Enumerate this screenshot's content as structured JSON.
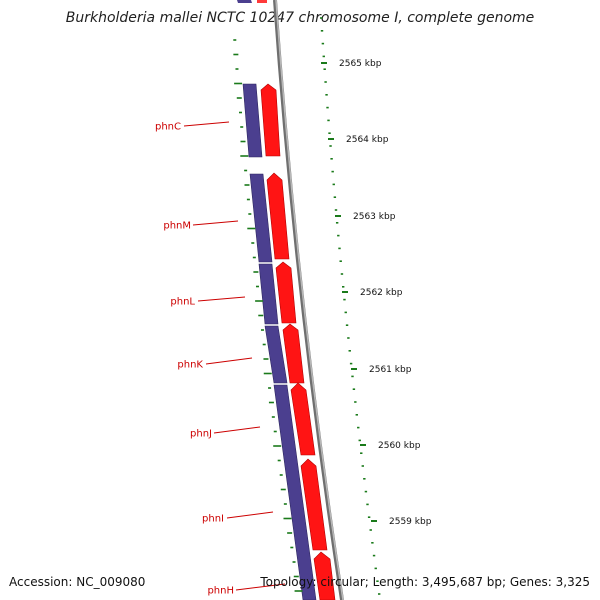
{
  "title": "Burkholderia mallei NCTC 10247 chromosome I, complete genome",
  "footer": {
    "accession": "Accession: NC_009080",
    "summary": "Topology: circular; Length: 3,495,687 bp; Genes: 3,325"
  },
  "ticks": [
    {
      "label": "2565 kbp"
    },
    {
      "label": "2564 kbp"
    },
    {
      "label": "2563 kbp"
    },
    {
      "label": "2562 kbp"
    },
    {
      "label": "2561 kbp"
    },
    {
      "label": "2560 kbp"
    },
    {
      "label": "2559 kbp"
    }
  ],
  "genes": [
    {
      "label": "phnC"
    },
    {
      "label": "phnM"
    },
    {
      "label": "phnL"
    },
    {
      "label": "phnK"
    },
    {
      "label": "phnJ"
    },
    {
      "label": "phnI"
    },
    {
      "label": "phnH"
    }
  ],
  "colors": {
    "backbone": "#8a8a8a",
    "cds": "#4b3f8f",
    "gene": "#ff0000",
    "gc_skew": "#1a7a1a",
    "gene_label": "#cc0000",
    "tick_text": "#111111"
  }
}
